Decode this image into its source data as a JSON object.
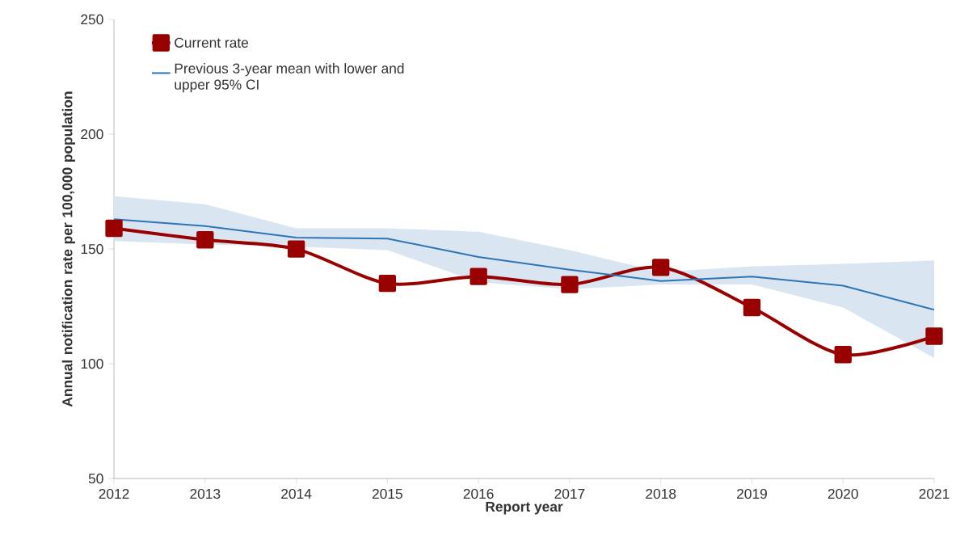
{
  "chart_data": {
    "type": "line",
    "xlabel": "Report year",
    "ylabel": "Annual notification rate per 100,000 population",
    "x": [
      2012,
      2013,
      2014,
      2015,
      2016,
      2017,
      2018,
      2019,
      2020,
      2021
    ],
    "series": [
      {
        "name": "Current rate",
        "color": "#990000",
        "marker": "square",
        "values": [
          159,
          154,
          150,
          135,
          138,
          134.5,
          142,
          124.5,
          104,
          112
        ]
      },
      {
        "name": "Previous 3-year mean with lower and upper 95% CI",
        "color": "#2e75b6",
        "marker": "none",
        "values": [
          163,
          160,
          155,
          154.5,
          146.5,
          141,
          136,
          138,
          134,
          123.5
        ],
        "lower": [
          153.5,
          152,
          151,
          149.5,
          135.5,
          132.5,
          134.5,
          134.5,
          124.5,
          102.5
        ],
        "upper": [
          173,
          169.5,
          159,
          159,
          157.5,
          149.5,
          140,
          142.5,
          143.5,
          145
        ]
      }
    ],
    "xlim": [
      2012,
      2021
    ],
    "xticks": [
      2012,
      2013,
      2014,
      2015,
      2016,
      2017,
      2018,
      2019,
      2020,
      2021
    ],
    "ylim": [
      50,
      250
    ],
    "yticks": [
      50,
      100,
      150,
      200,
      250
    ],
    "grid": false,
    "legend": "top left",
    "line_style": "solid"
  }
}
